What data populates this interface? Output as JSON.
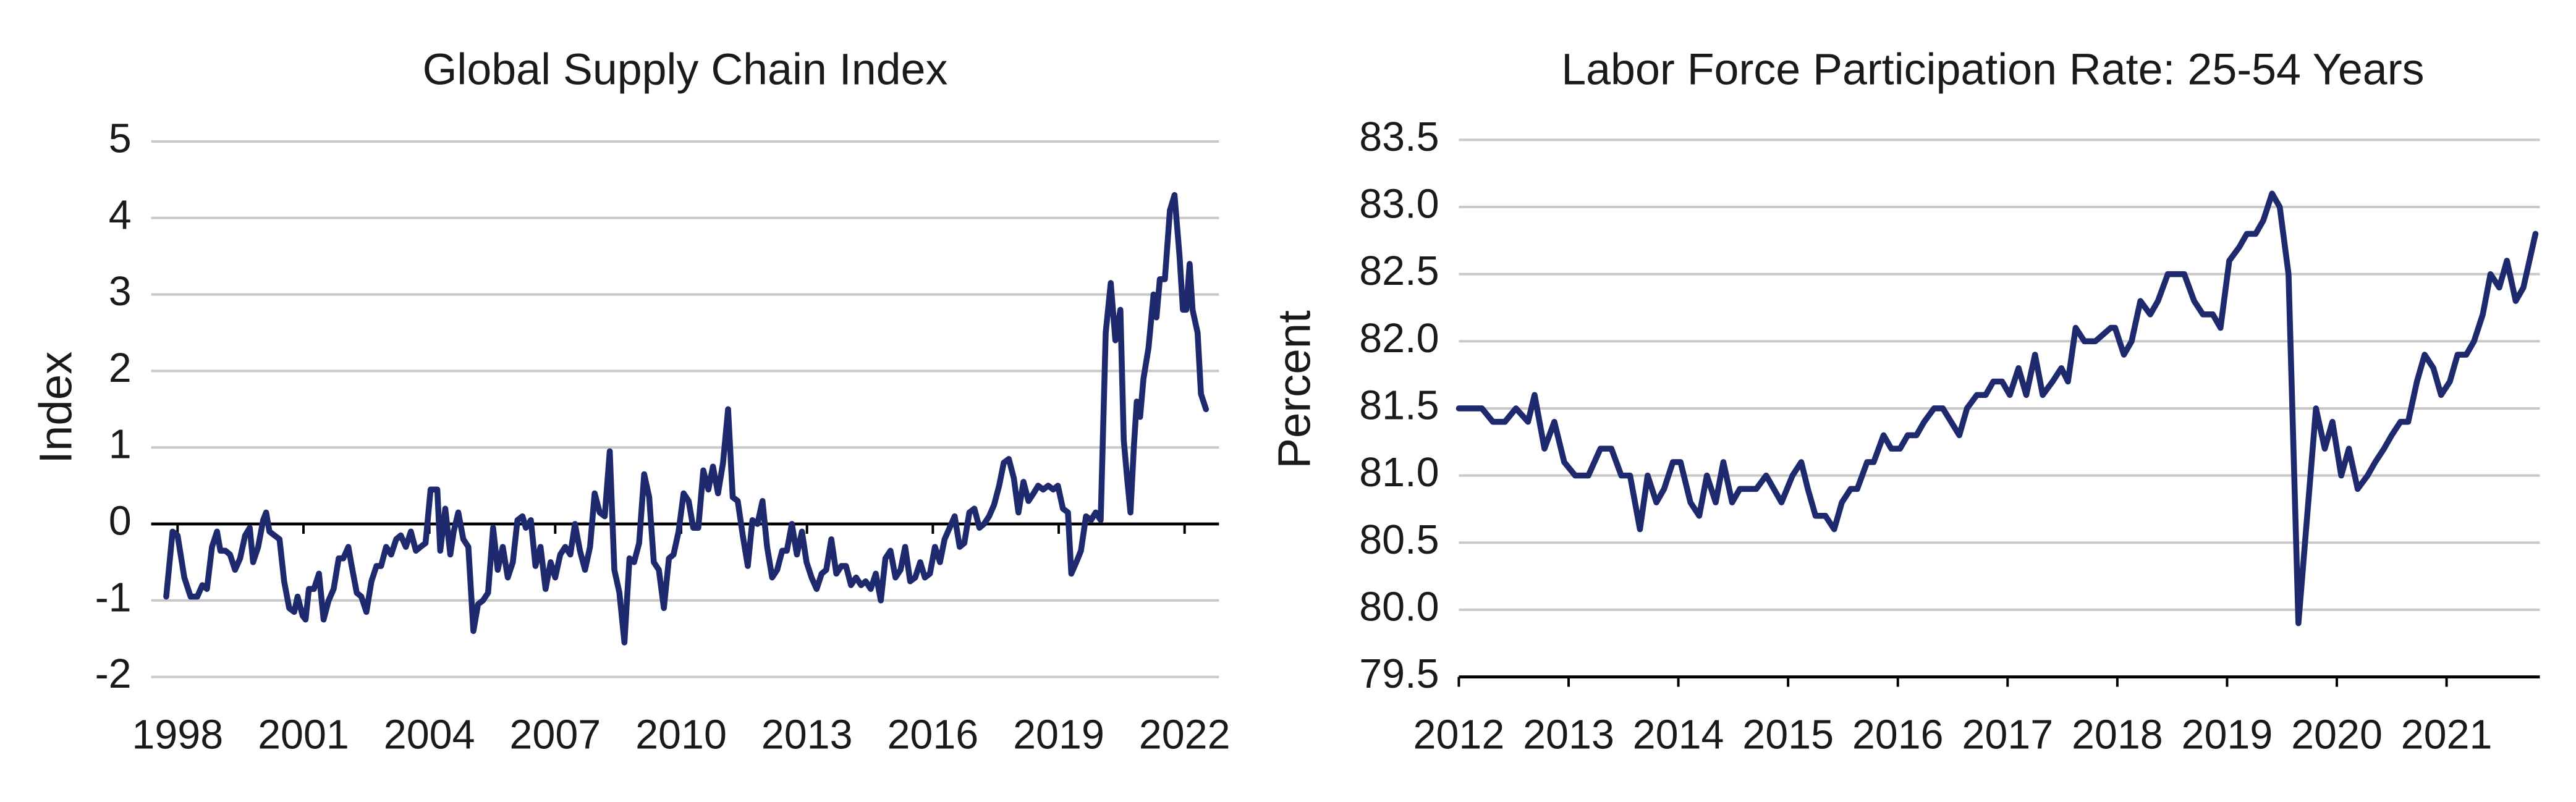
{
  "chart_data": [
    {
      "type": "line",
      "title": "Global Supply Chain Index",
      "y_label": "Index",
      "color": "#1f2a6e",
      "grid": true,
      "xlim": [
        1997.37,
        2022.82
      ],
      "xticks": [
        1998,
        2001,
        2004,
        2007,
        2010,
        2013,
        2016,
        2019,
        2022
      ],
      "ylim": [
        -2,
        5
      ],
      "yticks": [
        -2,
        -1,
        0,
        1,
        2,
        3,
        4,
        5
      ],
      "x": [
        1997.73,
        1997.88,
        1998.0,
        1998.16,
        1998.31,
        1998.47,
        1998.59,
        1998.7,
        1998.82,
        1998.94,
        1999.02,
        1999.14,
        1999.25,
        1999.37,
        1999.49,
        1999.61,
        1999.72,
        1999.8,
        1999.92,
        2000.04,
        2000.11,
        2000.19,
        2000.31,
        2000.43,
        2000.54,
        2000.66,
        2000.78,
        2000.86,
        2000.98,
        2001.05,
        2001.13,
        2001.25,
        2001.37,
        2001.48,
        2001.6,
        2001.72,
        2001.84,
        2001.95,
        2002.07,
        2002.15,
        2002.27,
        2002.38,
        2002.5,
        2002.62,
        2002.74,
        2002.85,
        2002.97,
        2003.09,
        2003.21,
        2003.32,
        2003.44,
        2003.56,
        2003.68,
        2003.79,
        2003.91,
        2004.03,
        2004.19,
        2004.26,
        2004.38,
        2004.5,
        2004.58,
        2004.69,
        2004.81,
        2004.93,
        2005.05,
        2005.16,
        2005.28,
        2005.4,
        2005.52,
        2005.63,
        2005.75,
        2005.87,
        2005.99,
        2006.1,
        2006.22,
        2006.3,
        2006.42,
        2006.53,
        2006.65,
        2006.77,
        2006.89,
        2007.0,
        2007.12,
        2007.24,
        2007.36,
        2007.47,
        2007.59,
        2007.71,
        2007.83,
        2007.94,
        2008.06,
        2008.18,
        2008.3,
        2008.41,
        2008.53,
        2008.65,
        2008.77,
        2008.88,
        2009.0,
        2009.12,
        2009.24,
        2009.35,
        2009.47,
        2009.59,
        2009.71,
        2009.82,
        2009.94,
        2010.06,
        2010.18,
        2010.29,
        2010.41,
        2010.53,
        2010.65,
        2010.76,
        2010.88,
        2011.0,
        2011.12,
        2011.23,
        2011.35,
        2011.47,
        2011.59,
        2011.7,
        2011.82,
        2011.94,
        2012.05,
        2012.17,
        2012.29,
        2012.41,
        2012.52,
        2012.64,
        2012.76,
        2012.88,
        2012.99,
        2013.11,
        2013.23,
        2013.35,
        2013.46,
        2013.58,
        2013.7,
        2013.82,
        2013.93,
        2014.05,
        2014.17,
        2014.29,
        2014.4,
        2014.52,
        2014.64,
        2014.76,
        2014.87,
        2014.99,
        2015.11,
        2015.23,
        2015.34,
        2015.46,
        2015.58,
        2015.7,
        2015.81,
        2015.93,
        2016.05,
        2016.17,
        2016.28,
        2016.4,
        2016.52,
        2016.64,
        2016.75,
        2016.87,
        2016.99,
        2017.11,
        2017.22,
        2017.34,
        2017.46,
        2017.58,
        2017.69,
        2017.81,
        2017.93,
        2018.04,
        2018.16,
        2018.28,
        2018.4,
        2018.51,
        2018.63,
        2018.75,
        2018.87,
        2018.98,
        2019.1,
        2019.22,
        2019.3,
        2019.42,
        2019.53,
        2019.65,
        2019.77,
        2019.88,
        2020.0,
        2020.12,
        2020.24,
        2020.35,
        2020.47,
        2020.55,
        2020.63,
        2020.71,
        2020.79,
        2020.86,
        2020.94,
        2021.02,
        2021.14,
        2021.26,
        2021.33,
        2021.41,
        2021.53,
        2021.65,
        2021.76,
        2021.88,
        2021.96,
        2022.04,
        2022.12,
        2022.19,
        2022.31,
        2022.39,
        2022.51
      ],
      "values": [
        -0.95,
        -0.1,
        -0.15,
        -0.7,
        -0.95,
        -0.95,
        -0.8,
        -0.85,
        -0.3,
        -0.1,
        -0.35,
        -0.35,
        -0.4,
        -0.6,
        -0.45,
        -0.15,
        -0.05,
        -0.5,
        -0.3,
        0.05,
        0.15,
        -0.1,
        -0.15,
        -0.2,
        -0.75,
        -1.1,
        -1.15,
        -0.95,
        -1.2,
        -1.25,
        -0.85,
        -0.85,
        -0.65,
        -1.25,
        -1.0,
        -0.85,
        -0.45,
        -0.45,
        -0.3,
        -0.55,
        -0.9,
        -0.95,
        -1.15,
        -0.75,
        -0.55,
        -0.55,
        -0.3,
        -0.4,
        -0.2,
        -0.15,
        -0.3,
        -0.1,
        -0.35,
        -0.3,
        -0.25,
        0.45,
        0.45,
        -0.35,
        0.2,
        -0.4,
        -0.1,
        0.15,
        -0.2,
        -0.3,
        -1.4,
        -1.05,
        -1.0,
        -0.9,
        -0.05,
        -0.6,
        -0.3,
        -0.7,
        -0.5,
        0.05,
        0.1,
        -0.05,
        0.05,
        -0.55,
        -0.3,
        -0.85,
        -0.5,
        -0.7,
        -0.4,
        -0.3,
        -0.4,
        0.0,
        -0.35,
        -0.6,
        -0.3,
        0.4,
        0.15,
        0.1,
        0.95,
        -0.6,
        -0.9,
        -1.55,
        -0.45,
        -0.5,
        -0.25,
        0.65,
        0.35,
        -0.5,
        -0.6,
        -1.1,
        -0.45,
        -0.4,
        -0.1,
        0.4,
        0.3,
        -0.05,
        -0.05,
        0.7,
        0.45,
        0.75,
        0.4,
        0.8,
        1.5,
        0.35,
        0.3,
        -0.15,
        -0.55,
        0.05,
        0.0,
        0.3,
        -0.3,
        -0.7,
        -0.6,
        -0.35,
        -0.35,
        0.0,
        -0.4,
        -0.1,
        -0.5,
        -0.7,
        -0.85,
        -0.65,
        -0.6,
        -0.2,
        -0.65,
        -0.55,
        -0.55,
        -0.8,
        -0.7,
        -0.8,
        -0.75,
        -0.85,
        -0.65,
        -1.0,
        -0.45,
        -0.35,
        -0.7,
        -0.6,
        -0.3,
        -0.75,
        -0.7,
        -0.5,
        -0.7,
        -0.65,
        -0.3,
        -0.5,
        -0.2,
        -0.05,
        0.1,
        -0.3,
        -0.25,
        0.15,
        0.2,
        -0.05,
        0.0,
        0.1,
        0.25,
        0.5,
        0.8,
        0.85,
        0.6,
        0.15,
        0.55,
        0.3,
        0.4,
        0.5,
        0.45,
        0.5,
        0.45,
        0.5,
        0.2,
        0.15,
        -0.65,
        -0.5,
        -0.35,
        0.1,
        0.05,
        0.15,
        0.05,
        2.5,
        3.15,
        2.4,
        2.8,
        1.1,
        0.6,
        0.15,
        1.0,
        1.6,
        1.4,
        1.9,
        2.3,
        3.0,
        2.7,
        3.2,
        3.2,
        4.1,
        4.3,
        3.5,
        2.8,
        2.8,
        3.4,
        2.8,
        2.5,
        1.7,
        1.5
      ]
    },
    {
      "type": "line",
      "title": "Labor Force Participation Rate: 25-54 Years",
      "y_label": "Percent",
      "color": "#1f2a6e",
      "grid": true,
      "xlim": [
        2012,
        2021.85
      ],
      "xticks": [
        2012,
        2013,
        2014,
        2015,
        2016,
        2017,
        2018,
        2019,
        2020,
        2021
      ],
      "ylim": [
        79.5,
        83.5
      ],
      "yticks": [
        79.5,
        {
          "value": 80,
          "label": "80.0"
        },
        80.5,
        {
          "value": 81,
          "label": "81.0"
        },
        81.5,
        {
          "value": 82,
          "label": "82.0"
        },
        82.5,
        {
          "value": 83,
          "label": "83.0"
        },
        83.5
      ],
      "x": [
        2012.0,
        2012.21,
        2012.31,
        2012.42,
        2012.52,
        2012.63,
        2012.69,
        2012.78,
        2012.87,
        2012.96,
        2013.06,
        2013.18,
        2013.29,
        2013.39,
        2013.48,
        2013.56,
        2013.65,
        2013.72,
        2013.8,
        2013.87,
        2013.95,
        2014.02,
        2014.11,
        2014.19,
        2014.26,
        2014.34,
        2014.41,
        2014.49,
        2014.56,
        2014.71,
        2014.8,
        2014.94,
        2015.04,
        2015.12,
        2015.18,
        2015.25,
        2015.34,
        2015.42,
        2015.49,
        2015.57,
        2015.63,
        2015.72,
        2015.78,
        2015.87,
        2015.94,
        2016.02,
        2016.09,
        2016.17,
        2016.24,
        2016.33,
        2016.41,
        2016.56,
        2016.63,
        2016.72,
        2016.8,
        2016.87,
        2016.95,
        2017.02,
        2017.1,
        2017.17,
        2017.25,
        2017.32,
        2017.41,
        2017.49,
        2017.55,
        2017.62,
        2017.7,
        2017.8,
        2017.94,
        2017.98,
        2018.06,
        2018.13,
        2018.21,
        2018.3,
        2018.37,
        2018.46,
        2018.61,
        2018.7,
        2018.78,
        2018.87,
        2018.94,
        2019.02,
        2019.11,
        2019.18,
        2019.26,
        2019.33,
        2019.41,
        2019.48,
        2019.56,
        2019.65,
        2019.72,
        2019.81,
        2019.89,
        2019.96,
        2020.04,
        2020.11,
        2020.19,
        2020.28,
        2020.35,
        2020.43,
        2020.5,
        2020.58,
        2020.65,
        2020.73,
        2020.8,
        2020.88,
        2020.95,
        2021.03,
        2021.1,
        2021.18,
        2021.25,
        2021.33,
        2021.4,
        2021.48,
        2021.55,
        2021.63,
        2021.7,
        2021.81
      ],
      "values": [
        81.5,
        81.5,
        81.4,
        81.4,
        81.5,
        81.4,
        81.6,
        81.2,
        81.4,
        81.1,
        81.0,
        81.0,
        81.2,
        81.2,
        81.0,
        81.0,
        80.6,
        81.0,
        80.8,
        80.9,
        81.1,
        81.1,
        80.8,
        80.7,
        81.0,
        80.8,
        81.1,
        80.8,
        80.9,
        80.9,
        81.0,
        80.8,
        81.0,
        81.1,
        80.9,
        80.7,
        80.7,
        80.6,
        80.8,
        80.9,
        80.9,
        81.1,
        81.1,
        81.3,
        81.2,
        81.2,
        81.3,
        81.3,
        81.4,
        81.5,
        81.5,
        81.3,
        81.5,
        81.6,
        81.6,
        81.7,
        81.7,
        81.6,
        81.8,
        81.6,
        81.9,
        81.6,
        81.7,
        81.8,
        81.7,
        82.1,
        82.0,
        82.0,
        82.1,
        82.1,
        81.9,
        82.0,
        82.3,
        82.2,
        82.3,
        82.5,
        82.5,
        82.3,
        82.2,
        82.2,
        82.1,
        82.6,
        82.7,
        82.8,
        82.8,
        82.9,
        83.1,
        83.0,
        82.5,
        79.9,
        80.6,
        81.5,
        81.2,
        81.4,
        81.0,
        81.2,
        80.9,
        81.0,
        81.1,
        81.2,
        81.3,
        81.4,
        81.4,
        81.7,
        81.9,
        81.8,
        81.6,
        81.7,
        81.9,
        81.9,
        82.0,
        82.2,
        82.5,
        82.4,
        82.6,
        82.3,
        82.4,
        82.8
      ]
    }
  ]
}
